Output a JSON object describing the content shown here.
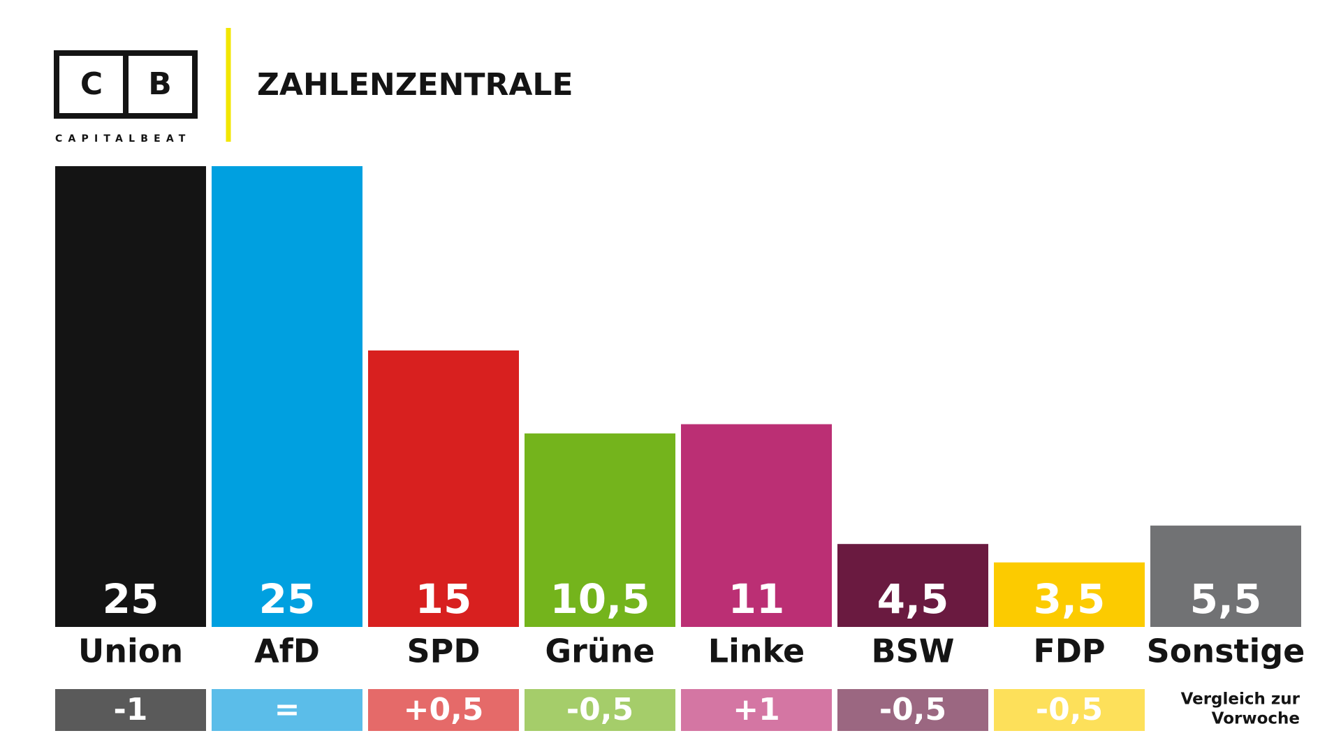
{
  "header": {
    "logo": [
      "C",
      "B"
    ],
    "brand": "CAPITALBEAT",
    "title": "ZAHLENZENTRALE"
  },
  "chart_data": {
    "type": "bar",
    "categories": [
      "Union",
      "AfD",
      "SPD",
      "Grüne",
      "Linke",
      "BSW",
      "FDP",
      "Sonstige"
    ],
    "values": [
      25,
      25,
      15,
      10.5,
      11,
      4.5,
      3.5,
      5.5
    ],
    "value_labels": [
      "25",
      "25",
      "15",
      "10,5",
      "11",
      "4,5",
      "3,5",
      "5,5"
    ],
    "colors": [
      "#141414",
      "#00a0e0",
      "#d8201f",
      "#74b41c",
      "#bb2f74",
      "#6a1a40",
      "#fccb00",
      "#717274"
    ],
    "changes": [
      "-1",
      "=",
      "+0,5",
      "-0,5",
      "+1",
      "-0,5",
      "-0,5"
    ],
    "change_colors": [
      "#5a5a5a",
      "#5bbde9",
      "#e56a69",
      "#a5cd6a",
      "#d476a3",
      "#9b6781",
      "#fde05a"
    ],
    "change_note": [
      "Vergleich zur",
      "Vorwoche"
    ],
    "ylim": [
      0,
      25
    ]
  }
}
